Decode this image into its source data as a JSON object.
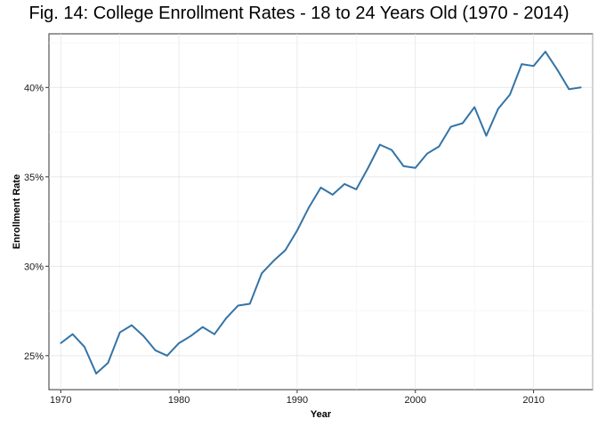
{
  "chart_data": {
    "type": "line",
    "title": "Fig. 14: College Enrollment Rates - 18 to 24 Years Old (1970 - 2014)",
    "xlabel": "Year",
    "ylabel": "Enrollment Rate",
    "xlim": [
      1969,
      2015
    ],
    "ylim": [
      23.1,
      43.0
    ],
    "x_ticks": [
      1970,
      1980,
      1990,
      2000,
      2010
    ],
    "x_tick_labels": [
      "1970",
      "1980",
      "1990",
      "2000",
      "2010"
    ],
    "y_ticks": [
      25,
      30,
      35,
      40
    ],
    "y_tick_labels": [
      "25%",
      "30%",
      "35%",
      "40%"
    ],
    "grid": true,
    "legend": "none",
    "color": "#3474a7",
    "series": [
      {
        "x": [
          1970,
          1971,
          1972,
          1973,
          1974,
          1975,
          1976,
          1977,
          1978,
          1979,
          1980,
          1981,
          1982,
          1983,
          1984,
          1985,
          1986,
          1987,
          1988,
          1989,
          1990,
          1991,
          1992,
          1993,
          1994,
          1995,
          1996,
          1997,
          1998,
          1999,
          2000,
          2001,
          2002,
          2003,
          2004,
          2005,
          2006,
          2007,
          2008,
          2009,
          2010,
          2011,
          2012,
          2013,
          2014
        ],
        "values": [
          25.7,
          26.2,
          25.5,
          24.0,
          24.6,
          26.3,
          26.7,
          26.1,
          25.3,
          25.0,
          25.7,
          26.1,
          26.6,
          26.2,
          27.1,
          27.8,
          27.9,
          29.6,
          30.3,
          30.9,
          32.0,
          33.3,
          34.4,
          34.0,
          34.6,
          34.3,
          35.5,
          36.8,
          36.5,
          35.6,
          35.5,
          36.3,
          36.7,
          37.8,
          38.0,
          38.9,
          37.3,
          38.8,
          39.6,
          41.3,
          41.2,
          42.0,
          41.0,
          39.9,
          40.0
        ]
      }
    ]
  }
}
